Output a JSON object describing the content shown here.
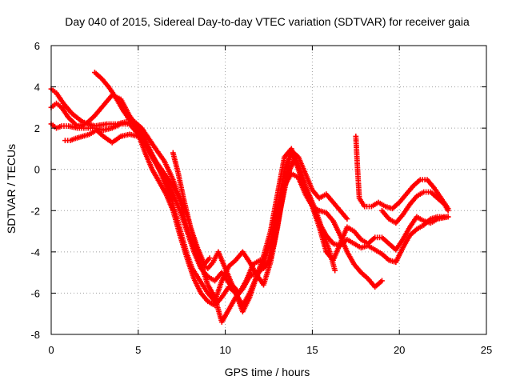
{
  "chart_data": {
    "type": "scatter",
    "title": "Day 040 of 2015, Sidereal Day-to-day VTEC variation (SDTVAR) for receiver gaia",
    "xlabel": "GPS time / hours",
    "ylabel": "SDTVAR / TECUs",
    "xlim": [
      0,
      25
    ],
    "ylim": [
      -8,
      6
    ],
    "xticks": [
      0,
      5,
      10,
      15,
      20,
      25
    ],
    "yticks": [
      -8,
      -6,
      -4,
      -2,
      0,
      2,
      4,
      6
    ],
    "grid": true,
    "marker": "plus",
    "color": "#ff0000",
    "series": [
      {
        "x": [
          0.0,
          0.3,
          0.7,
          1.2,
          1.8,
          2.5,
          3.2,
          3.8,
          4.3,
          4.8,
          5.2,
          5.6,
          6.0,
          6.5,
          7.0,
          7.4,
          7.8,
          8.2,
          8.6,
          9.0,
          9.3,
          9.6,
          10.0,
          10.4,
          10.8,
          11.2,
          11.6,
          12.0,
          12.4,
          12.8,
          13.2,
          13.6,
          14.0,
          14.4,
          14.8,
          15.2,
          15.6,
          16.0,
          16.3
        ],
        "y": [
          3.9,
          3.7,
          3.2,
          2.7,
          2.3,
          2.1,
          2.2,
          2.2,
          2.3,
          2.3,
          2.0,
          1.5,
          1.0,
          0.4,
          -0.5,
          -1.5,
          -2.8,
          -3.8,
          -4.6,
          -4.8,
          -4.5,
          -4.0,
          -4.8,
          -5.6,
          -6.0,
          -5.4,
          -4.6,
          -4.4,
          -4.6,
          -3.6,
          -1.8,
          -0.2,
          0.5,
          -0.4,
          -1.2,
          -2.0,
          -3.0,
          -4.0,
          -4.9
        ]
      },
      {
        "x": [
          0.0,
          0.3,
          0.6,
          1.0,
          1.5,
          2.0,
          2.5,
          3.0,
          3.5,
          4.0,
          4.5,
          5.0,
          5.4,
          5.8,
          6.2,
          6.6,
          7.0,
          7.4,
          7.8,
          8.2,
          8.6,
          9.0,
          9.4,
          9.8,
          10.2,
          10.6,
          11.0,
          11.4,
          11.8,
          12.2,
          12.6,
          13.0,
          13.4,
          13.8,
          14.2,
          14.6,
          15.0,
          15.4,
          15.8,
          16.2,
          16.6,
          17.0,
          17.4,
          17.8,
          18.2,
          18.6,
          19.0,
          19.4,
          19.8,
          20.2,
          20.6,
          21.0,
          21.4,
          21.8,
          22.2,
          22.8
        ],
        "y": [
          3.0,
          3.2,
          3.0,
          2.5,
          2.1,
          2.2,
          2.6,
          3.1,
          3.6,
          3.4,
          2.6,
          2.0,
          1.2,
          0.6,
          0.0,
          -0.5,
          -1.2,
          -2.0,
          -3.0,
          -4.0,
          -4.8,
          -5.2,
          -5.4,
          -5.0,
          -5.5,
          -6.0,
          -6.6,
          -6.0,
          -5.2,
          -4.6,
          -3.5,
          -1.8,
          0.0,
          0.8,
          0.2,
          -0.8,
          -1.8,
          -2.6,
          -3.2,
          -3.6,
          -3.7,
          -3.4,
          -3.6,
          -3.8,
          -3.7,
          -3.9,
          -4.1,
          -4.4,
          -4.5,
          -3.8,
          -3.2,
          -2.9,
          -2.7,
          -2.4,
          -2.3,
          -2.3
        ]
      },
      {
        "x": [
          0.0,
          0.3,
          0.6,
          1.0,
          1.5,
          2.0,
          2.5,
          3.0,
          3.5,
          4.0,
          4.5,
          5.0,
          5.4,
          5.8,
          6.2,
          6.6,
          7.0,
          7.4,
          7.8,
          8.2,
          8.6,
          9.0,
          9.4,
          9.8,
          10.2,
          10.6,
          11.0,
          11.4,
          11.8,
          12.2,
          12.6,
          13.0,
          13.4,
          13.8,
          14.2,
          14.6,
          15.0,
          15.4,
          15.8,
          16.2,
          16.6,
          17.0,
          17.4,
          17.8,
          18.2,
          18.6,
          19.0
        ],
        "y": [
          2.2,
          2.0,
          2.1,
          2.1,
          2.0,
          2.0,
          2.0,
          1.9,
          2.0,
          2.2,
          2.2,
          1.7,
          0.8,
          0.0,
          -0.6,
          -1.2,
          -2.0,
          -3.2,
          -4.3,
          -5.3,
          -6.0,
          -6.4,
          -6.6,
          -6.2,
          -5.7,
          -6.0,
          -6.9,
          -6.2,
          -5.2,
          -4.2,
          -3.0,
          -1.2,
          0.6,
          1.0,
          0.0,
          -1.0,
          -1.8,
          -2.0,
          -2.1,
          -2.5,
          -3.2,
          -4.0,
          -4.6,
          -5.0,
          -5.3,
          -5.7,
          -5.4
        ]
      },
      {
        "x": [
          0.8,
          1.1,
          1.4,
          1.8,
          2.2,
          2.6,
          3.0,
          3.5,
          4.0,
          4.5,
          5.0,
          5.5,
          6.0,
          6.5,
          7.0,
          7.4,
          7.8,
          8.2,
          8.6,
          9.0,
          9.4,
          9.8,
          10.2,
          10.6,
          11.0,
          11.4,
          11.8,
          12.2,
          12.6,
          13.0,
          13.4,
          13.8,
          14.2,
          14.6,
          15.0,
          15.4,
          15.8,
          16.2,
          16.6,
          17.0,
          17.4,
          17.8,
          18.2,
          18.6,
          19.0,
          19.4,
          19.8,
          20.2,
          20.6,
          21.0,
          21.4,
          21.8,
          22.2,
          22.8
        ],
        "y": [
          1.4,
          1.4,
          1.5,
          1.6,
          1.7,
          1.9,
          1.6,
          1.3,
          1.6,
          1.7,
          1.6,
          1.1,
          0.4,
          -0.2,
          -0.8,
          -1.4,
          -2.2,
          -3.4,
          -4.6,
          -5.6,
          -6.2,
          -7.4,
          -6.8,
          -6.2,
          -5.8,
          -5.2,
          -5.0,
          -4.8,
          -4.4,
          -2.0,
          -0.8,
          -0.2,
          -0.4,
          -1.2,
          -1.8,
          -2.8,
          -4.0,
          -4.4,
          -3.6,
          -2.8,
          -3.0,
          -3.4,
          -3.6,
          -3.3,
          -3.3,
          -3.6,
          -3.9,
          -3.4,
          -2.8,
          -2.3,
          -2.5,
          -2.6,
          -2.4,
          -2.3
        ]
      },
      {
        "x": [
          2.5,
          2.9,
          3.3,
          3.7,
          4.1,
          4.5,
          4.9,
          5.3,
          5.7,
          6.1,
          6.5,
          6.9,
          7.2,
          7.5,
          7.8,
          8.1,
          8.4,
          8.7,
          9.0,
          9.4,
          9.8,
          10.2,
          10.6,
          11.0,
          11.4,
          11.8,
          12.2,
          12.6,
          13.0,
          13.4,
          13.8,
          14.2,
          14.6,
          15.0,
          15.4,
          15.8,
          16.2,
          16.6,
          17.0
        ],
        "y": [
          4.7,
          4.4,
          4.0,
          3.5,
          2.9,
          2.4,
          2.1,
          1.6,
          0.9,
          0.2,
          -0.6,
          -1.4,
          -2.3,
          -3.2,
          -4.1,
          -4.8,
          -5.2,
          -5.6,
          -6.0,
          -6.4,
          -5.4,
          -4.7,
          -4.4,
          -4.0,
          -4.5,
          -5.1,
          -5.6,
          -4.5,
          -2.8,
          -0.8,
          0.9,
          0.6,
          -0.2,
          -1.0,
          -1.4,
          -1.2,
          -1.6,
          -2.0,
          -2.4
        ]
      },
      {
        "x": [
          7.0,
          7.3,
          7.6,
          8.0,
          8.4,
          8.8,
          9.1
        ],
        "y": [
          0.8,
          -0.2,
          -1.4,
          -2.8,
          -3.8,
          -4.6,
          -4.3
        ]
      },
      {
        "x": [
          17.5,
          17.6,
          17.7,
          18.0,
          18.4,
          18.8,
          19.2,
          19.6,
          20.0,
          20.4,
          20.8,
          21.2,
          21.6,
          22.0,
          22.4,
          22.8
        ],
        "y": [
          1.6,
          0.0,
          -1.4,
          -1.8,
          -1.8,
          -1.6,
          -1.8,
          -1.9,
          -1.6,
          -1.2,
          -0.8,
          -0.5,
          -0.5,
          -0.9,
          -1.4,
          -1.9
        ]
      },
      {
        "x": [
          19.0,
          19.4,
          19.8,
          20.2,
          20.6,
          21.0,
          21.4,
          21.8,
          22.2,
          22.6,
          22.8
        ],
        "y": [
          -2.0,
          -2.4,
          -2.6,
          -2.2,
          -1.7,
          -1.3,
          -1.1,
          -1.1,
          -1.4,
          -1.7,
          -2.0
        ]
      }
    ]
  }
}
